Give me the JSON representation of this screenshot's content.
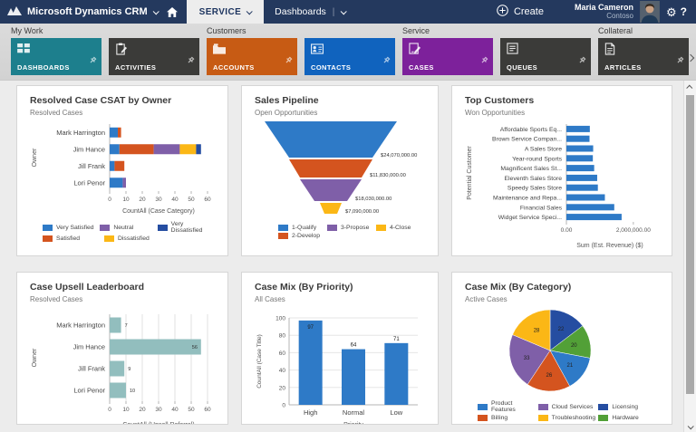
{
  "topbar": {
    "brand": "Microsoft Dynamics CRM",
    "nav_area": "SERVICE",
    "nav_page": "Dashboards",
    "create_label": "Create",
    "user_name": "Maria Cameron",
    "user_org": "Contoso",
    "icons": [
      "dynamics-logo",
      "home-icon",
      "plus-circle-icon",
      "avatar",
      "gear-icon",
      "help-icon"
    ]
  },
  "ribbon": {
    "groups": [
      {
        "label": "My Work",
        "tiles": [
          {
            "label": "DASHBOARDS",
            "color": "#1D7F8D",
            "icon": "dashboard-icon"
          },
          {
            "label": "ACTIVITIES",
            "color": "#3B3B39",
            "icon": "clipboard-icon"
          }
        ]
      },
      {
        "label": "Customers",
        "tiles": [
          {
            "label": "ACCOUNTS",
            "color": "#C75B14",
            "icon": "folder-icon"
          },
          {
            "label": "CONTACTS",
            "color": "#1063BE",
            "icon": "contact-card-icon"
          }
        ]
      },
      {
        "label": "Service",
        "tiles": [
          {
            "label": "CASES",
            "color": "#7D219B",
            "icon": "case-icon"
          },
          {
            "label": "QUEUES",
            "color": "#3B3B39",
            "icon": "queue-icon"
          }
        ]
      },
      {
        "label": "Collateral",
        "tiles": [
          {
            "label": "ARTICLES",
            "color": "#3B3B39",
            "icon": "article-icon"
          }
        ]
      }
    ]
  },
  "cards": [
    {
      "title": "Resolved Case CSAT by Owner",
      "subtitle": "Resolved Cases",
      "chart_data": {
        "type": "stacked_bar_h",
        "categories": [
          "Mark Harrington",
          "Jim Hance",
          "Jill Frank",
          "Lori Penor"
        ],
        "series": [
          {
            "name": "Very Satisfied",
            "color": "#2E7AC7",
            "values": [
              5,
              6,
              3,
              8
            ]
          },
          {
            "name": "Satisfied",
            "color": "#D4541F",
            "values": [
              2,
              21,
              6,
              0
            ]
          },
          {
            "name": "Neutral",
            "color": "#7F5FA8",
            "values": [
              0,
              16,
              0,
              2
            ]
          },
          {
            "name": "Dissatisfied",
            "color": "#FBB716",
            "values": [
              0,
              10,
              0,
              0
            ]
          },
          {
            "name": "Very Dissatisfied",
            "color": "#254DA1",
            "values": [
              0,
              3,
              0,
              0
            ]
          }
        ],
        "xlabel": "CountAll (Case Category)",
        "ylabel": "Owner",
        "xlim": [
          0,
          60
        ],
        "xticks": [
          0,
          10,
          20,
          30,
          40,
          50,
          60
        ],
        "legend_rows": [
          [
            "Very Satisfied",
            "Neutral",
            "Very Dissatisfied"
          ],
          [
            "Satisfied",
            "Dissatisfied"
          ]
        ]
      }
    },
    {
      "title": "Sales Pipeline",
      "subtitle": "Open Opportunities",
      "chart_data": {
        "type": "funnel",
        "stages": [
          {
            "name": "1-Qualify",
            "color": "#2E7AC7",
            "label": "$24,070,000.00"
          },
          {
            "name": "2-Develop",
            "color": "#D4541F",
            "label": "$11,830,000.00"
          },
          {
            "name": "3-Propose",
            "color": "#7F5FA8",
            "label": "$18,030,000.00"
          },
          {
            "name": "4-Close",
            "color": "#FBB716",
            "label": "$7,090,000.00"
          }
        ],
        "legend_rows": [
          [
            "1-Qualify",
            "3-Propose",
            "4-Close"
          ],
          [
            "2-Develop"
          ]
        ]
      }
    },
    {
      "title": "Top Customers",
      "subtitle": "Won Opportunities",
      "chart_data": {
        "type": "bar_h",
        "categories": [
          "Affordable Sports Eq...",
          "Brown Service Compan...",
          "A Sales Store",
          "Year-round Sports",
          "Magnificent Sales St...",
          "Eleventh Sales Store",
          "Speedy Sales Store",
          "Maintenance and Repa...",
          "Financial Sales",
          "Widget Service Speci..."
        ],
        "values": [
          700000,
          690000,
          800000,
          790000,
          830000,
          920000,
          940000,
          1150000,
          1430000,
          1650000
        ],
        "color": "#2E7AC7",
        "xlabel": "Sum (Est. Revenue) ($)",
        "ylabel": "Potential Customer",
        "xlim": [
          0,
          2600000
        ],
        "xticks": [
          {
            "v": 0,
            "label": "0.00"
          },
          {
            "v": 2000000,
            "label": "2,000,000.00"
          }
        ]
      }
    },
    {
      "title": "Case Upsell Leaderboard",
      "subtitle": "Resolved Cases",
      "chart_data": {
        "type": "bar_h",
        "categories": [
          "Mark Harrington",
          "Jim Hance",
          "Jill Frank",
          "Lori Penor"
        ],
        "values": [
          7,
          56,
          9,
          10
        ],
        "value_labels": [
          "7",
          "56",
          "9",
          "10"
        ],
        "color": "#92BEBE",
        "xlabel": "CountAll (Upsell Referral)",
        "ylabel": "Owner",
        "xlim": [
          0,
          60
        ],
        "xticks": [
          {
            "v": 0,
            "label": "0"
          },
          {
            "v": 10,
            "label": "10"
          },
          {
            "v": 20,
            "label": "20"
          },
          {
            "v": 30,
            "label": "30"
          },
          {
            "v": 40,
            "label": "40"
          },
          {
            "v": 50,
            "label": "50"
          },
          {
            "v": 60,
            "label": "60"
          }
        ],
        "grid": true
      }
    },
    {
      "title": "Case Mix (By Priority)",
      "subtitle": "All Cases",
      "chart_data": {
        "type": "bar_v",
        "categories": [
          "High",
          "Normal",
          "Low"
        ],
        "values": [
          97,
          64,
          71
        ],
        "value_labels": [
          "97",
          "64",
          "71"
        ],
        "color": "#2E7AC7",
        "xlabel": "Priority",
        "ylabel": "CountAll (Case Title)",
        "ylim": [
          0,
          100
        ],
        "yticks": [
          0,
          20,
          40,
          60,
          80,
          100
        ],
        "grid": true
      }
    },
    {
      "title": "Case Mix (By Category)",
      "subtitle": "Active Cases",
      "chart_data": {
        "type": "pie",
        "slices": [
          {
            "name": "Licensing",
            "value": 22,
            "color": "#254DA1"
          },
          {
            "name": "Hardware",
            "value": 20,
            "color": "#52A037"
          },
          {
            "name": "Product Features",
            "value": 21,
            "color": "#2E7AC7"
          },
          {
            "name": "Billing",
            "value": 26,
            "color": "#D4541F"
          },
          {
            "name": "Cloud Services",
            "value": 33,
            "color": "#7F5FA8"
          },
          {
            "name": "Troubleshooting",
            "value": 28,
            "color": "#FBB716"
          }
        ],
        "legend_rows": [
          [
            "Product Features",
            "Cloud Services",
            "Licensing"
          ],
          [
            "Billing",
            "Troubleshooting",
            "Hardware"
          ]
        ]
      }
    }
  ]
}
